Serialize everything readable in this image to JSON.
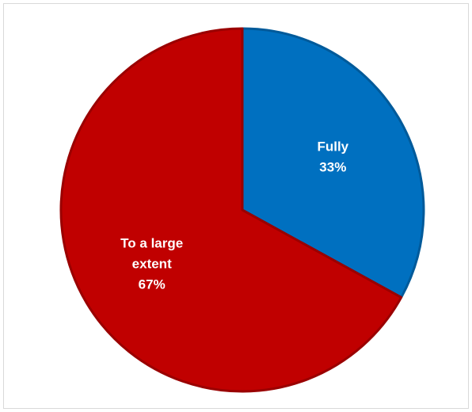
{
  "chart_data": {
    "type": "pie",
    "title": "",
    "slices": [
      {
        "label_lines": [
          "Fully"
        ],
        "value": 33,
        "value_label": "33%",
        "color": "#0070c0"
      },
      {
        "label_lines": [
          "To a large",
          "extent"
        ],
        "value": 67,
        "value_label": "67%",
        "color": "#c00000"
      }
    ],
    "legend": "none"
  }
}
